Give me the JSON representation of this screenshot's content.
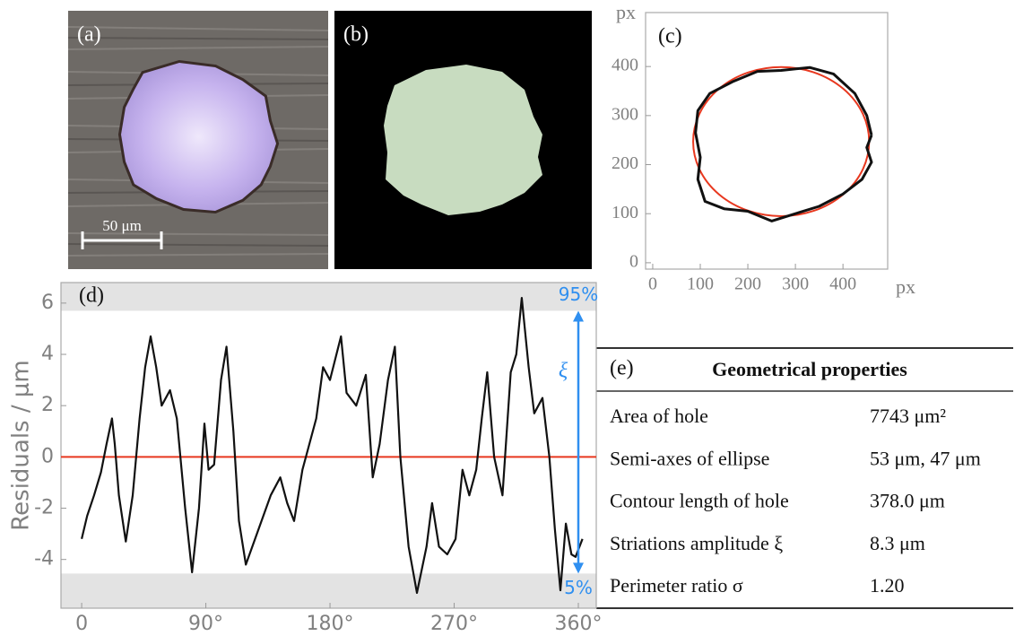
{
  "panels": {
    "a": {
      "label": "(a)",
      "scale_bar": "50 μm"
    },
    "b": {
      "label": "(b)"
    }
  },
  "chart_data": [
    {
      "type": "line",
      "label": "(c)",
      "xlabel": "px",
      "ylabel": "px",
      "xlim": [
        -15,
        494
      ],
      "ylim": [
        -13,
        510
      ],
      "xticks": [
        0,
        100,
        200,
        300,
        400
      ],
      "yticks": [
        0,
        100,
        200,
        300,
        400
      ],
      "series": [
        {
          "color": "#111111",
          "x": [
            460,
            450,
            425,
            380,
            330,
            270,
            220,
            170,
            120,
            95,
            90,
            100,
            95,
            110,
            150,
            200,
            250,
            300,
            350,
            400,
            440,
            460,
            450,
            460
          ],
          "values": [
            260,
            300,
            345,
            385,
            398,
            392,
            390,
            370,
            345,
            310,
            265,
            215,
            170,
            125,
            110,
            105,
            85,
            100,
            115,
            140,
            170,
            205,
            235,
            260
          ]
        }
      ],
      "ellipse": {
        "color": "#e8381f",
        "cx": 270,
        "cy": 247,
        "rx": 185,
        "ry": 152
      }
    },
    {
      "type": "line",
      "label": "(d)",
      "ylabel": "Residuals / μm",
      "xlim": [
        -15,
        373
      ],
      "ylim": [
        -5.9,
        6.8
      ],
      "xticks": [
        0,
        {
          "value": 90,
          "label": "90°"
        },
        {
          "value": 180,
          "label": "180°"
        },
        {
          "value": 270,
          "label": "270°"
        },
        {
          "value": 360,
          "label": "360°"
        }
      ],
      "yticks": [
        -4,
        -2,
        0,
        2,
        4,
        6
      ],
      "series": [
        {
          "color": "#111111",
          "x": [
            0,
            4,
            9,
            14,
            18,
            22,
            24,
            27,
            32,
            37,
            42,
            46,
            50,
            54,
            58,
            64,
            69,
            75,
            80,
            85,
            89,
            92,
            96,
            101,
            105,
            110,
            114,
            119,
            127,
            137,
            144,
            149,
            154,
            160,
            165,
            170,
            175,
            180,
            188,
            192,
            199,
            206,
            211,
            216,
            222,
            227,
            231,
            237,
            243,
            250,
            254,
            259,
            265,
            271,
            276,
            281,
            286,
            290,
            294,
            299,
            305,
            311,
            315,
            319,
            324,
            328,
            334,
            339,
            343,
            347,
            351,
            355,
            358,
            363
          ],
          "values": [
            -3.2,
            -2.3,
            -1.5,
            -0.6,
            0.5,
            1.5,
            0.5,
            -1.5,
            -3.3,
            -1.5,
            1.5,
            3.5,
            4.7,
            3.5,
            2.0,
            2.6,
            1.5,
            -2.0,
            -4.5,
            -2.0,
            1.3,
            -0.5,
            -0.3,
            3.0,
            4.3,
            1.0,
            -2.5,
            -4.2,
            -3.0,
            -1.5,
            -0.8,
            -1.8,
            -2.5,
            -0.5,
            0.5,
            1.5,
            3.5,
            3.0,
            4.7,
            2.5,
            2.0,
            3.2,
            -0.8,
            0.5,
            3.0,
            4.3,
            0,
            -3.5,
            -5.3,
            -3.5,
            -1.8,
            -3.5,
            -3.8,
            -3.2,
            -0.5,
            -1.5,
            -0.5,
            1.5,
            3.3,
            0,
            -1.5,
            3.3,
            4.0,
            6.2,
            3.5,
            1.7,
            2.3,
            0,
            -2.8,
            -5.2,
            -2.6,
            -3.8,
            -3.9,
            -3.2
          ]
        }
      ],
      "reference_line": {
        "value": 0,
        "color": "#e8381f"
      },
      "band": {
        "upper": 5.7,
        "lower": -4.55,
        "upper_label": "95%",
        "lower_label": "5%",
        "amplitude_label": "ξ",
        "color": "#2f8ff0"
      }
    }
  ],
  "table": {
    "label": "(e)",
    "title": "Geometrical properties",
    "rows": [
      [
        "Area of hole",
        "7743 μm²"
      ],
      [
        "Semi-axes of ellipse",
        "53 μm, 47 μm"
      ],
      [
        "Contour length of hole",
        "378.0 μm"
      ],
      [
        "Striations amplitude ξ",
        "8.3 μm"
      ],
      [
        "Perimeter ratio σ",
        "1.20"
      ]
    ]
  }
}
